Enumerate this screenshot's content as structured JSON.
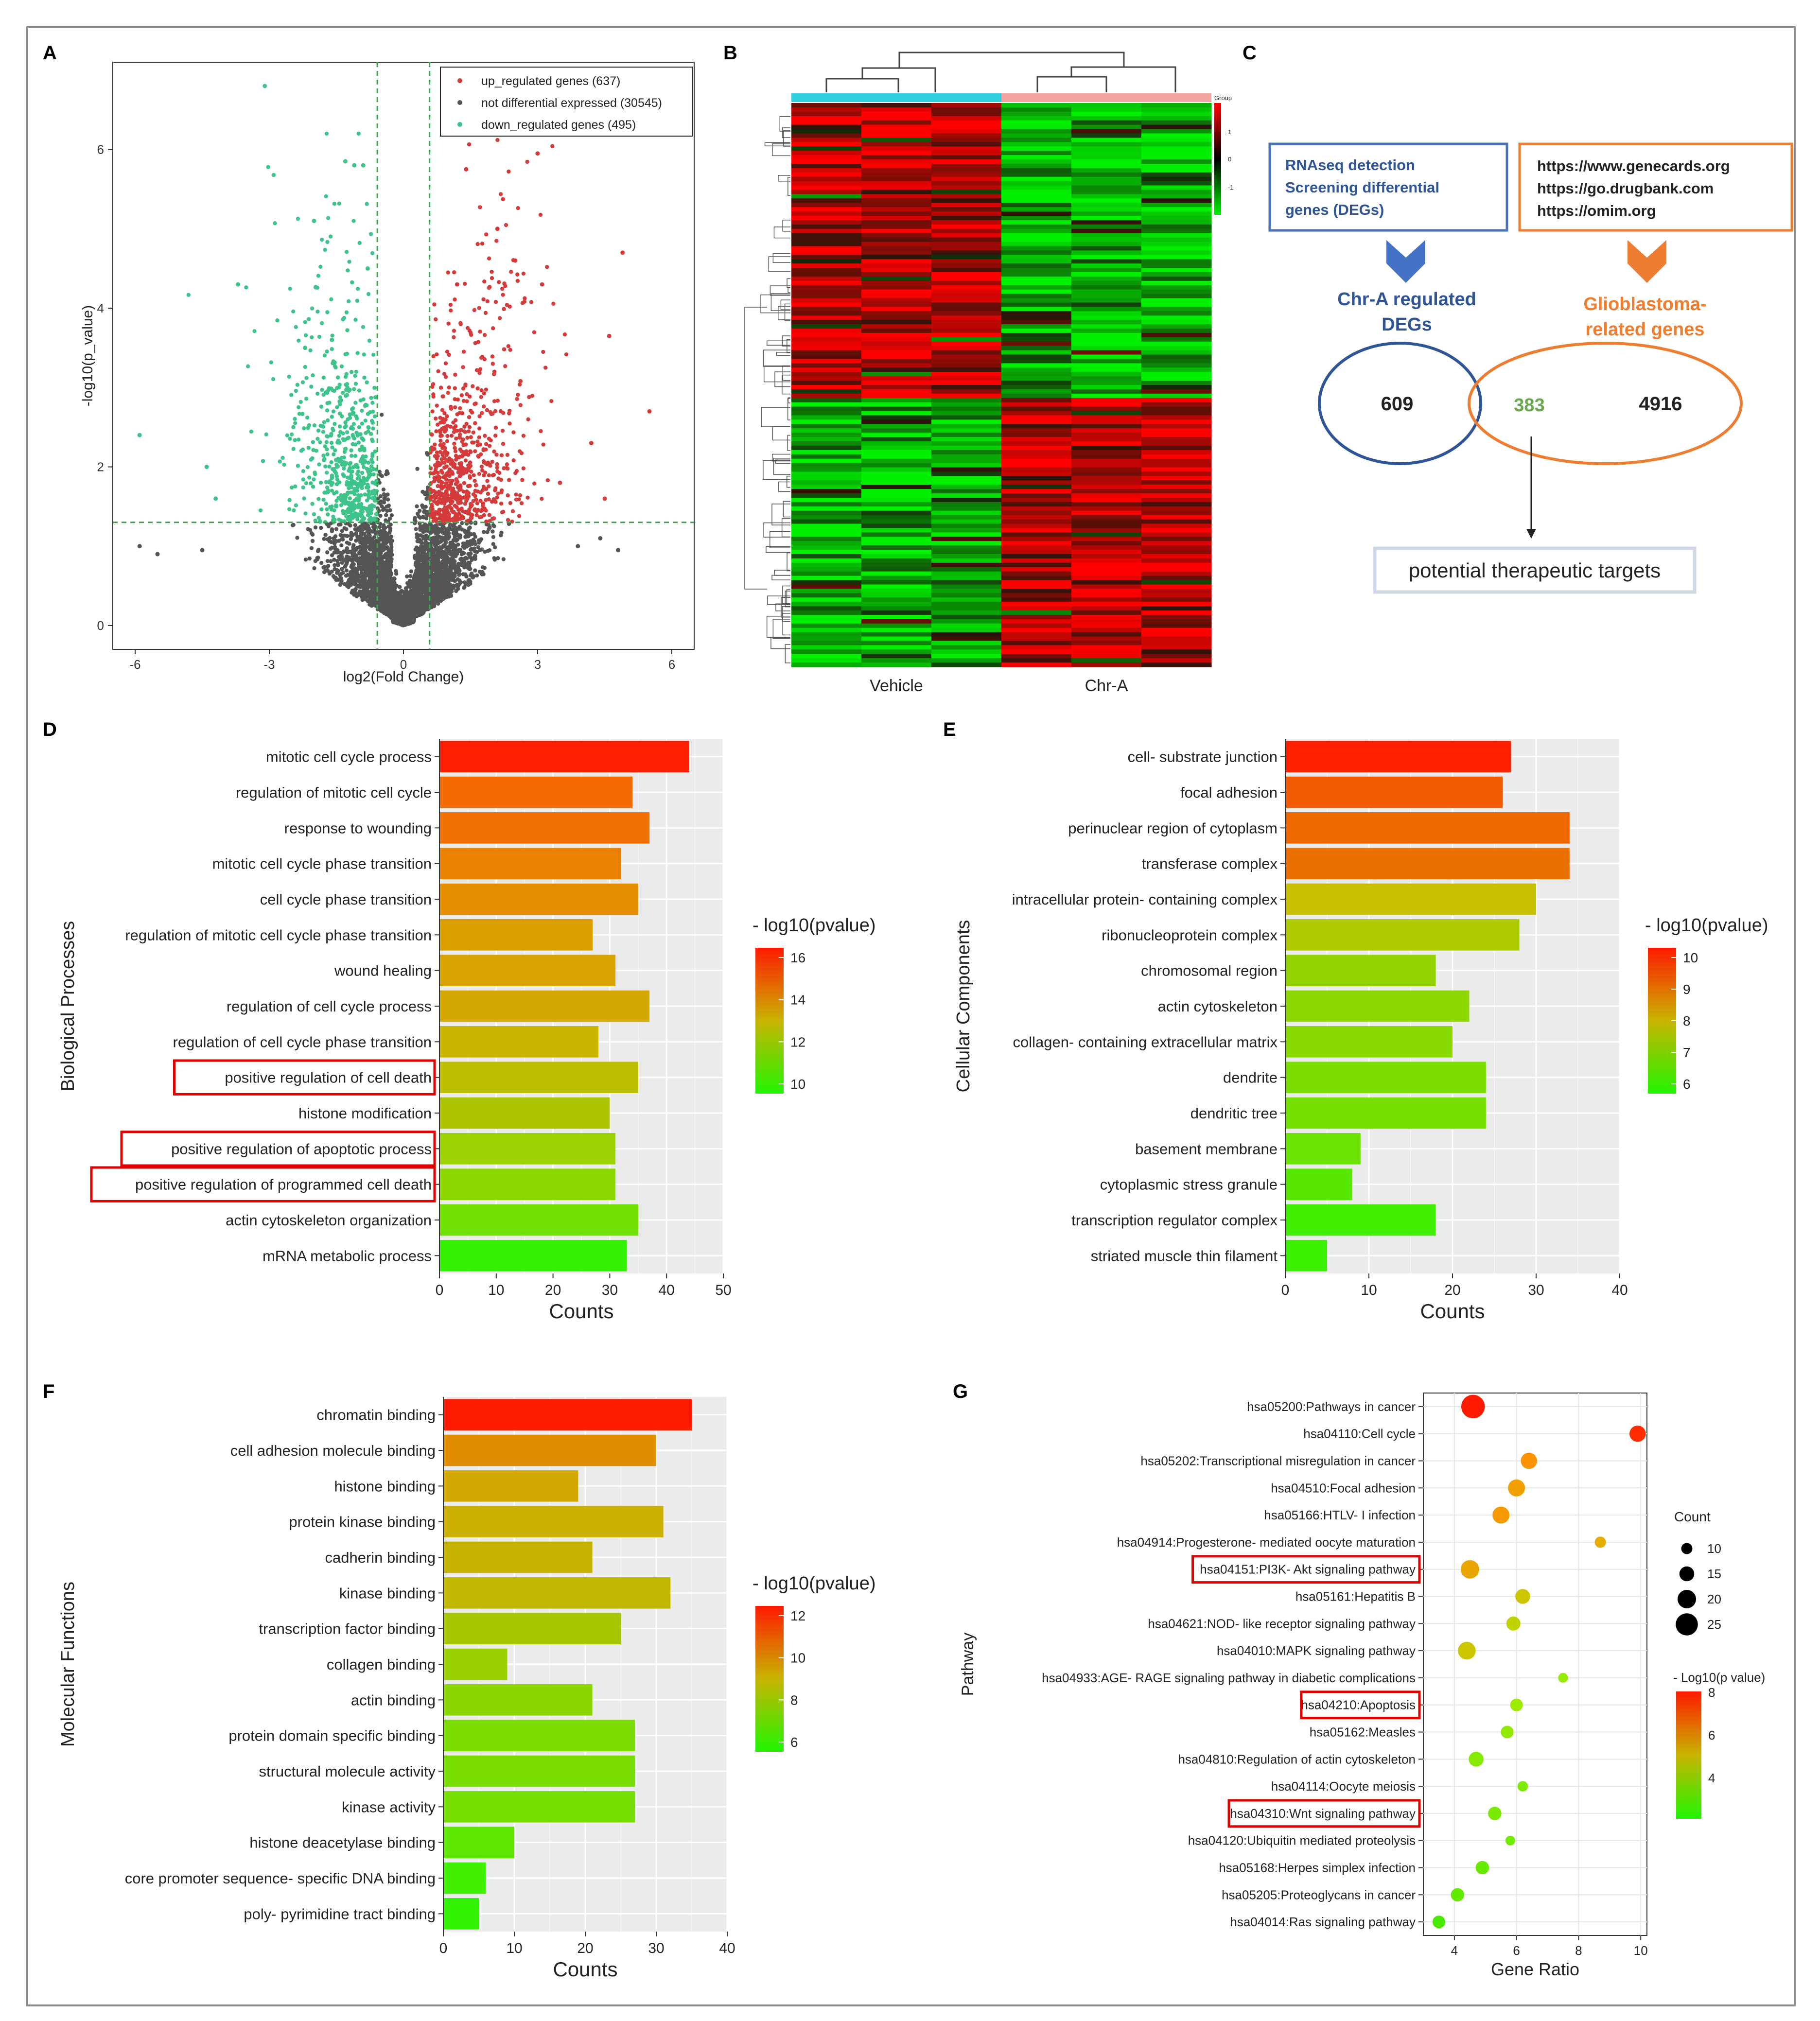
{
  "panel_labels": [
    "A",
    "B",
    "C",
    "D",
    "E",
    "F",
    "G"
  ],
  "chart_data": [
    {
      "id": "A",
      "type": "scatter",
      "title": "",
      "xlabel": "log2(Fold Change)",
      "ylabel": "-log10(p_value)",
      "xlim": [
        -6.5,
        6.5
      ],
      "ylim": [
        -0.3,
        7.1
      ],
      "xticks": [
        -6,
        -3,
        0,
        3,
        6
      ],
      "yticks": [
        0,
        2,
        4,
        6
      ],
      "thresholds": {
        "x": [
          -0.585,
          0.585
        ],
        "y": 1.3
      },
      "legend": {
        "placement": "top-right",
        "entries": [
          {
            "label": "up_regulated genes (637)",
            "color": "#d43b3b"
          },
          {
            "label": "not differential expressed (30545)",
            "color": "#555555"
          },
          {
            "label": "down_regulated genes (495)",
            "color": "#3ec48a"
          }
        ]
      },
      "highlight_points": {
        "down": [
          [
            -3.1,
            6.8
          ],
          [
            -1.3,
            5.85
          ],
          [
            -1.1,
            5.8
          ],
          [
            -0.9,
            5.8
          ],
          [
            -2.0,
            5.1
          ],
          [
            -3.7,
            4.3
          ],
          [
            -2.2,
            3.5
          ],
          [
            -4.4,
            2.0
          ],
          [
            -4.2,
            1.6
          ],
          [
            -5.9,
            2.4
          ],
          [
            -1.6,
            3.6
          ],
          [
            -0.8,
            4.5
          ]
        ],
        "up": [
          [
            3.0,
            5.95
          ],
          [
            1.4,
            5.75
          ],
          [
            2.1,
            5.0
          ],
          [
            2.5,
            4.6
          ],
          [
            4.9,
            4.7
          ],
          [
            3.1,
            4.3
          ],
          [
            4.6,
            3.65
          ],
          [
            5.5,
            2.7
          ],
          [
            4.2,
            2.3
          ],
          [
            4.5,
            1.6
          ],
          [
            3.5,
            1.8
          ],
          [
            1.2,
            4.3
          ]
        ],
        "ns": [
          [
            -5.5,
            0.9
          ],
          [
            -4.5,
            0.95
          ],
          [
            -5.9,
            1.0
          ],
          [
            4.8,
            0.95
          ],
          [
            3.9,
            1.0
          ],
          [
            4.4,
            1.1
          ]
        ]
      }
    },
    {
      "id": "B",
      "type": "heatmap",
      "title": "",
      "groups": [
        "Vehicle",
        "Chr-A"
      ],
      "group_colors": [
        "#2ecfe0",
        "#f4a3a0"
      ],
      "columns": 6,
      "legend_title": "Group",
      "scale": {
        "ticks": [
          1,
          0,
          -1
        ],
        "colors": [
          "#ff0000",
          "#000000",
          "#00ee00"
        ]
      }
    },
    {
      "id": "C",
      "type": "diagram",
      "box_left": [
        "RNAseq detection",
        "Screening differential",
        "genes (DEGs)"
      ],
      "box_right": [
        "https://www.genecards.org",
        "https://go.drugbank.com",
        "https://omim.org"
      ],
      "label_left": [
        "Chr-A regulated",
        "DEGs"
      ],
      "label_right": [
        "Glioblastoma-",
        "related  genes"
      ],
      "venn": {
        "left_only": 609,
        "overlap": 383,
        "right_only": 4916
      },
      "result": "potential therapeutic targets"
    },
    {
      "id": "D",
      "type": "bar",
      "orientation": "horizontal",
      "ylabel": "Biological Processes",
      "xlabel": "Counts",
      "xlim": [
        0,
        50
      ],
      "xticks": [
        0,
        10,
        20,
        30,
        40,
        50
      ],
      "legend_title": "- log10(pvalue)",
      "legend_ticks": [
        16,
        14,
        12,
        10
      ],
      "categories": [
        "mitotic cell cycle process",
        "regulation of mitotic cell cycle",
        "response to wounding",
        "mitotic cell cycle phase transition",
        "cell cycle phase transition",
        "regulation of mitotic cell cycle phase transition",
        "wound healing",
        "regulation of cell cycle process",
        "regulation of cell cycle phase transition",
        "positive regulation of cell death",
        "histone modification",
        "positive regulation of apoptotic process",
        "positive regulation of programmed cell death",
        "actin cytoskeleton organization",
        "mRNA metabolic process"
      ],
      "values": [
        44,
        34,
        37,
        32,
        35,
        27,
        31,
        37,
        28,
        35,
        30,
        31,
        31,
        35,
        33
      ],
      "colors": [
        "#ff1f00",
        "#f26a00",
        "#f07000",
        "#eb8100",
        "#e58e00",
        "#d99e00",
        "#d6a300",
        "#d2a800",
        "#c7b500",
        "#bcbe00",
        "#adc500",
        "#9bd200",
        "#8ad800",
        "#6fe000",
        "#33f000"
      ],
      "highlighted": [
        "positive regulation of cell death",
        "positive regulation of apoptotic process",
        "positive regulation of programmed cell death"
      ]
    },
    {
      "id": "E",
      "type": "bar",
      "orientation": "horizontal",
      "ylabel": "Cellular Components",
      "xlabel": "Counts",
      "xlim": [
        0,
        40
      ],
      "xticks": [
        0,
        10,
        20,
        30,
        40
      ],
      "legend_title": "- log10(pvalue)",
      "legend_ticks": [
        10,
        9,
        8,
        7,
        6
      ],
      "categories": [
        "cell- substrate junction",
        "focal adhesion",
        "perinuclear region of cytoplasm",
        "transferase complex",
        "intracellular protein- containing complex",
        "ribonucleoprotein complex",
        "chromosomal region",
        "actin cytoskeleton",
        "collagen- containing extracellular matrix",
        "dendrite",
        "dendritic tree",
        "basement membrane",
        "cytoplasmic stress granule",
        "transcription regulator complex",
        "striated muscle thin filament"
      ],
      "values": [
        27,
        26,
        34,
        34,
        30,
        28,
        18,
        22,
        20,
        24,
        24,
        9,
        8,
        18,
        5
      ],
      "colors": [
        "#ff2000",
        "#f25a00",
        "#ee6800",
        "#ec7000",
        "#c6c000",
        "#aecb00",
        "#96d400",
        "#8ed800",
        "#88da00",
        "#7cde00",
        "#76e000",
        "#6ae400",
        "#58e800",
        "#40ee00",
        "#38f000"
      ]
    },
    {
      "id": "F",
      "type": "bar",
      "orientation": "horizontal",
      "ylabel": "Molecular Functions",
      "xlabel": "Counts",
      "xlim": [
        0,
        40
      ],
      "xticks": [
        0,
        10,
        20,
        30,
        40
      ],
      "legend_title": "- log10(pvalue)",
      "legend_ticks": [
        12,
        10,
        8,
        6
      ],
      "categories": [
        "chromatin binding",
        "cell adhesion molecule binding",
        "histone binding",
        "protein kinase binding",
        "cadherin binding",
        "kinase binding",
        "transcription factor binding",
        "collagen binding",
        "actin binding",
        "protein domain specific binding",
        "structural molecule activity",
        "kinase activity",
        "histone deacetylase binding",
        "core promoter sequence- specific DNA binding",
        "poly- pyrimidine tract binding"
      ],
      "values": [
        35,
        30,
        19,
        31,
        21,
        32,
        25,
        9,
        21,
        27,
        27,
        27,
        10,
        6,
        5
      ],
      "colors": [
        "#ff1c00",
        "#e08d00",
        "#d2a600",
        "#caae00",
        "#c6b300",
        "#c3b600",
        "#a6c800",
        "#98d000",
        "#8ad600",
        "#7cdd00",
        "#78de00",
        "#76df00",
        "#5ce600",
        "#40ee00",
        "#30f200"
      ]
    },
    {
      "id": "G",
      "type": "scatter",
      "ylabel": "Pathway",
      "xlabel": "Gene Ratio",
      "xlim": [
        3.0,
        10.2
      ],
      "xticks": [
        4,
        6,
        8,
        10
      ],
      "size_legend_title": "Count",
      "size_legend": [
        10,
        15,
        20,
        25
      ],
      "color_legend_title": "- Log10(p value)",
      "color_legend_ticks": [
        8,
        6,
        4
      ],
      "categories": [
        "hsa05200:Pathways in cancer",
        "hsa04110:Cell cycle",
        "hsa05202:Transcriptional misregulation in cancer",
        "hsa04510:Focal adhesion",
        "hsa05166:HTLV- I infection",
        "hsa04914:Progesterone- mediated oocyte maturation",
        "hsa04151:PI3K- Akt signaling pathway",
        "hsa05161:Hepatitis B",
        "hsa04621:NOD- like receptor signaling pathway",
        "hsa04010:MAPK signaling pathway",
        "hsa04933:AGE- RAGE signaling pathway in diabetic complications",
        "hsa04210:Apoptosis",
        "hsa05162:Measles",
        "hsa04810:Regulation of actin cytoskeleton",
        "hsa04114:Oocyte meiosis",
        "hsa04310:Wnt signaling pathway",
        "hsa04120:Ubiquitin mediated proteolysis",
        "hsa05168:Herpes simplex infection",
        "hsa05205:Proteoglycans in cancer",
        "hsa04014:Ras signaling pathway"
      ],
      "x": [
        4.6,
        9.9,
        6.4,
        6.0,
        5.5,
        8.7,
        4.5,
        6.2,
        5.9,
        4.4,
        7.5,
        6.0,
        5.7,
        4.7,
        6.2,
        5.3,
        5.8,
        4.9,
        4.1,
        3.5
      ],
      "counts": [
        27,
        17,
        17,
        18,
        18,
        10,
        20,
        15,
        14,
        19,
        8,
        12,
        12,
        15,
        9,
        13,
        8,
        13,
        13,
        12
      ],
      "p_values": [
        7.9,
        7.6,
        6.0,
        5.8,
        5.9,
        5.6,
        5.7,
        5.2,
        5.0,
        5.2,
        4.3,
        4.4,
        4.2,
        4.0,
        3.9,
        3.8,
        3.7,
        3.5,
        3.4,
        3.0
      ],
      "highlighted": [
        "hsa04151:PI3K- Akt signaling pathway",
        "hsa04210:Apoptosis",
        "hsa04310:Wnt signaling pathway"
      ]
    }
  ]
}
